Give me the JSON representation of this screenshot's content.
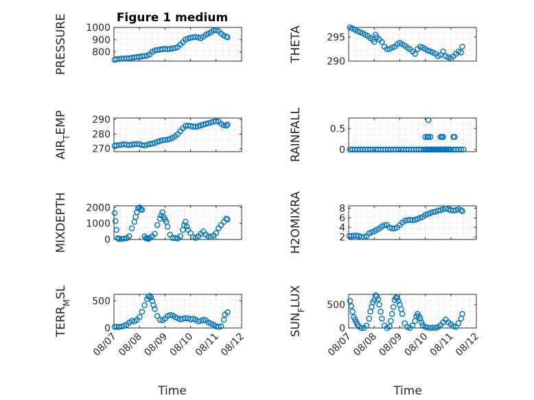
{
  "title": "Figure 1 medium",
  "marker_color": "#0072BD",
  "x_axis": {
    "label": "Time",
    "range": [
      "08/07",
      "08/12"
    ],
    "ticks": [
      "08/07",
      "08/08",
      "08/09",
      "08/10",
      "08/11",
      "08/12"
    ]
  },
  "chart_data": [
    {
      "type": "scatter",
      "ylabel": "PRESSURE",
      "ylim": [
        725,
        1000
      ],
      "yticks": [
        "800",
        "900",
        "1000"
      ],
      "grid": true,
      "x": [
        0.03,
        0.1,
        0.2,
        0.3,
        0.4,
        0.5,
        0.6,
        0.7,
        0.8,
        0.9,
        1.0,
        1.1,
        1.2,
        1.3,
        1.4,
        1.5,
        1.6,
        1.7,
        1.8,
        1.9,
        2.0,
        2.1,
        2.2,
        2.3,
        2.4,
        2.5,
        2.6,
        2.7,
        2.8,
        2.9,
        3.0,
        3.1,
        3.2,
        3.3,
        3.4,
        3.5,
        3.6,
        3.7,
        3.8,
        3.9,
        4.0,
        4.1,
        4.2,
        4.3,
        4.4,
        4.45
      ],
      "y": [
        735,
        740,
        742,
        745,
        745,
        748,
        748,
        752,
        755,
        758,
        760,
        765,
        765,
        770,
        780,
        800,
        812,
        815,
        820,
        822,
        825,
        822,
        825,
        828,
        832,
        840,
        860,
        880,
        900,
        910,
        915,
        920,
        922,
        918,
        912,
        925,
        940,
        950,
        960,
        975,
        980,
        970,
        950,
        935,
        925,
        920
      ]
    },
    {
      "type": "scatter",
      "ylabel": "THETA",
      "ylim": [
        290,
        297
      ],
      "yticks": [
        "290",
        "295"
      ],
      "grid": true,
      "x": [
        0.05,
        0.15,
        0.25,
        0.35,
        0.45,
        0.55,
        0.65,
        0.75,
        0.85,
        0.95,
        1.0,
        1.05,
        1.1,
        1.2,
        1.3,
        1.4,
        1.5,
        1.6,
        1.7,
        1.8,
        1.9,
        2.0,
        2.1,
        2.2,
        2.3,
        2.4,
        2.5,
        2.6,
        2.7,
        2.8,
        2.9,
        3.0,
        3.1,
        3.2,
        3.3,
        3.4,
        3.5,
        3.6,
        3.7,
        3.8,
        3.9,
        4.0,
        4.1,
        4.2,
        4.3,
        4.4,
        4.45
      ],
      "y": [
        297,
        296.8,
        296.5,
        296.2,
        296,
        295.8,
        295.5,
        295.2,
        294.8,
        294.5,
        294,
        295.5,
        295,
        294.5,
        294,
        293,
        292.5,
        292.5,
        292.8,
        293,
        293.5,
        293.8,
        293.5,
        293.2,
        292.8,
        292.5,
        292,
        291.5,
        292.5,
        293,
        292.8,
        292.5,
        292.2,
        292,
        291.8,
        291.5,
        291,
        291.3,
        292,
        291,
        290.8,
        290.5,
        291,
        291.5,
        292,
        291.8,
        293
      ]
    },
    {
      "type": "scatter",
      "ylabel": "AIR_TEMP",
      "ylim": [
        268,
        291
      ],
      "yticks": [
        "270",
        "280",
        "290"
      ],
      "grid": true,
      "x": [
        0.03,
        0.1,
        0.2,
        0.3,
        0.4,
        0.5,
        0.6,
        0.7,
        0.8,
        0.9,
        1.0,
        1.1,
        1.2,
        1.3,
        1.4,
        1.5,
        1.6,
        1.7,
        1.8,
        1.9,
        2.0,
        2.1,
        2.2,
        2.3,
        2.4,
        2.5,
        2.6,
        2.7,
        2.8,
        2.9,
        3.0,
        3.1,
        3.2,
        3.3,
        3.4,
        3.5,
        3.6,
        3.7,
        3.8,
        3.9,
        4.0,
        4.1,
        4.2,
        4.3,
        4.4,
        4.45
      ],
      "y": [
        272,
        272.3,
        272.5,
        272.8,
        273,
        272.8,
        272.5,
        272.8,
        273,
        273.2,
        273,
        272.5,
        272.2,
        272.8,
        273.2,
        273.5,
        274,
        274.8,
        275.2,
        275.8,
        276,
        276.2,
        276.8,
        277.5,
        278.5,
        280,
        282,
        284,
        285.5,
        285.8,
        285.5,
        285.2,
        285,
        285.3,
        286,
        286.5,
        287,
        287.5,
        288,
        288.5,
        289,
        288.5,
        287,
        286,
        285.8,
        286.5
      ]
    },
    {
      "type": "scatter",
      "ylabel": "RAINFALL",
      "ylim": [
        -0.05,
        0.75
      ],
      "yticks": [
        "0",
        "0.5"
      ],
      "grid": true,
      "x": [
        0.05,
        0.15,
        0.25,
        0.35,
        0.45,
        0.55,
        0.65,
        0.75,
        0.85,
        0.95,
        1.05,
        1.15,
        1.25,
        1.35,
        1.45,
        1.55,
        1.65,
        1.75,
        1.85,
        1.95,
        2.05,
        2.15,
        2.25,
        2.35,
        2.45,
        2.55,
        2.65,
        2.75,
        2.85,
        2.95,
        3.0,
        3.05,
        3.1,
        3.15,
        3.2,
        3.25,
        3.3,
        3.35,
        3.4,
        3.45,
        3.5,
        3.55,
        3.6,
        3.65,
        3.7,
        3.75,
        3.8,
        3.85,
        3.9,
        3.95,
        4.0,
        4.1,
        4.2,
        4.3,
        4.4,
        4.5,
        3.0,
        3.08,
        3.12,
        3.2,
        3.6,
        3.65,
        3.7,
        4.1,
        4.15,
        3.12
      ],
      "y": [
        0,
        0,
        0,
        0,
        0,
        0,
        0,
        0,
        0,
        0,
        0,
        0,
        0,
        0,
        0,
        0,
        0,
        0,
        0,
        0,
        0,
        0,
        0,
        0,
        0,
        0,
        0,
        0,
        0,
        0,
        0,
        0,
        0,
        0,
        0,
        0,
        0,
        0,
        0,
        0,
        0,
        0,
        0,
        0,
        0,
        0,
        0,
        0,
        0,
        0,
        0,
        0,
        0,
        0,
        0,
        0,
        0.3,
        0.3,
        0.3,
        0.3,
        0.3,
        0.3,
        0.3,
        0.3,
        0.3,
        0.7
      ]
    },
    {
      "type": "scatter",
      "ylabel": "MIXDEPTH",
      "ylim": [
        0,
        2100
      ],
      "yticks": [
        "0",
        "1000",
        "2000"
      ],
      "grid": true,
      "x": [
        0.03,
        0.06,
        0.1,
        0.15,
        0.2,
        0.3,
        0.4,
        0.5,
        0.6,
        0.7,
        0.8,
        0.85,
        0.9,
        0.95,
        1.0,
        1.05,
        1.1,
        1.2,
        1.25,
        1.3,
        1.35,
        1.4,
        1.5,
        1.6,
        1.7,
        1.8,
        1.85,
        1.9,
        1.95,
        2.0,
        2.05,
        2.1,
        2.2,
        2.3,
        2.4,
        2.5,
        2.6,
        2.7,
        2.75,
        2.8,
        2.85,
        2.9,
        3.0,
        3.1,
        3.2,
        3.3,
        3.4,
        3.5,
        3.6,
        3.7,
        3.8,
        3.9,
        4.0,
        4.1,
        4.2,
        4.3,
        4.4,
        4.45
      ],
      "y": [
        1650,
        1150,
        600,
        80,
        30,
        40,
        50,
        80,
        200,
        700,
        1100,
        1400,
        1700,
        1950,
        2000,
        1900,
        1850,
        200,
        80,
        60,
        40,
        100,
        200,
        350,
        900,
        1300,
        1500,
        1700,
        1400,
        1250,
        1100,
        800,
        300,
        100,
        80,
        60,
        200,
        600,
        900,
        1100,
        800,
        600,
        400,
        150,
        100,
        200,
        350,
        500,
        300,
        200,
        150,
        250,
        400,
        700,
        900,
        1100,
        1300,
        1250
      ]
    },
    {
      "type": "scatter",
      "ylabel": "H2OMIXRA",
      "ylim": [
        1.5,
        8.5
      ],
      "yticks": [
        "2",
        "4",
        "6",
        "8"
      ],
      "grid": true,
      "x": [
        0.03,
        0.1,
        0.2,
        0.3,
        0.4,
        0.5,
        0.6,
        0.7,
        0.8,
        0.9,
        1.0,
        1.1,
        1.2,
        1.3,
        1.4,
        1.5,
        1.6,
        1.7,
        1.8,
        1.9,
        2.0,
        2.1,
        2.2,
        2.3,
        2.4,
        2.5,
        2.6,
        2.7,
        2.8,
        2.9,
        3.0,
        3.1,
        3.2,
        3.3,
        3.4,
        3.5,
        3.6,
        3.7,
        3.8,
        3.9,
        4.0,
        4.1,
        4.2,
        4.3,
        4.4,
        4.45
      ],
      "y": [
        2.2,
        2.2,
        2.3,
        2.3,
        2.2,
        2.0,
        2.0,
        2.2,
        2.8,
        3.0,
        3.2,
        3.5,
        3.8,
        4.2,
        4.5,
        4.5,
        4.0,
        3.8,
        3.8,
        4.0,
        4.5,
        5.0,
        5.4,
        5.5,
        5.6,
        5.5,
        5.6,
        5.8,
        6.0,
        6.2,
        6.6,
        6.8,
        7.0,
        7.2,
        7.3,
        7.5,
        7.6,
        7.8,
        8.0,
        7.8,
        7.6,
        7.5,
        7.6,
        7.8,
        7.6,
        7.4
      ]
    },
    {
      "type": "scatter",
      "ylabel": "TERR_MSL",
      "ylim": [
        0,
        620
      ],
      "yticks": [
        "0",
        "500"
      ],
      "grid": true,
      "x": [
        0.03,
        0.1,
        0.2,
        0.3,
        0.4,
        0.5,
        0.6,
        0.7,
        0.8,
        0.9,
        1.0,
        1.1,
        1.2,
        1.3,
        1.35,
        1.4,
        1.45,
        1.5,
        1.55,
        1.6,
        1.7,
        1.8,
        1.9,
        2.0,
        2.1,
        2.2,
        2.3,
        2.4,
        2.5,
        2.6,
        2.7,
        2.8,
        2.9,
        3.0,
        3.1,
        3.2,
        3.3,
        3.4,
        3.5,
        3.6,
        3.7,
        3.8,
        3.9,
        4.0,
        4.1,
        4.2,
        4.3,
        4.35,
        4.45
      ],
      "y": [
        20,
        20,
        20,
        25,
        40,
        60,
        100,
        130,
        120,
        150,
        200,
        300,
        420,
        530,
        580,
        590,
        560,
        500,
        420,
        350,
        220,
        150,
        140,
        170,
        220,
        240,
        230,
        200,
        180,
        160,
        170,
        180,
        180,
        160,
        170,
        150,
        120,
        130,
        150,
        140,
        100,
        80,
        60,
        30,
        20,
        30,
        150,
        250,
        290
      ]
    },
    {
      "type": "scatter",
      "ylabel": "SUN_FLUX",
      "ylim": [
        0,
        720
      ],
      "yticks": [
        "0",
        "500"
      ],
      "grid": true,
      "x": [
        0.05,
        0.1,
        0.15,
        0.2,
        0.25,
        0.3,
        0.35,
        0.4,
        0.5,
        0.6,
        0.7,
        0.8,
        0.85,
        0.9,
        0.95,
        1.0,
        1.05,
        1.1,
        1.15,
        1.2,
        1.25,
        1.3,
        1.4,
        1.5,
        1.6,
        1.65,
        1.7,
        1.75,
        1.8,
        1.85,
        1.9,
        1.95,
        2.0,
        2.05,
        2.1,
        2.2,
        2.3,
        2.4,
        2.5,
        2.6,
        2.65,
        2.7,
        2.75,
        2.8,
        2.85,
        2.9,
        3.0,
        3.1,
        3.2,
        3.3,
        3.4,
        3.5,
        3.6,
        3.7,
        3.8,
        3.9,
        4.0,
        4.1,
        4.2,
        4.3,
        4.4,
        4.45
      ],
      "y": [
        580,
        470,
        350,
        230,
        180,
        120,
        70,
        30,
        0,
        0,
        50,
        200,
        350,
        450,
        550,
        600,
        700,
        680,
        620,
        500,
        350,
        200,
        50,
        0,
        30,
        150,
        300,
        450,
        600,
        650,
        640,
        580,
        500,
        400,
        300,
        100,
        20,
        0,
        50,
        150,
        250,
        300,
        250,
        200,
        120,
        60,
        20,
        10,
        0,
        10,
        0,
        20,
        60,
        120,
        180,
        120,
        80,
        40,
        20,
        100,
        200,
        300
      ]
    }
  ]
}
